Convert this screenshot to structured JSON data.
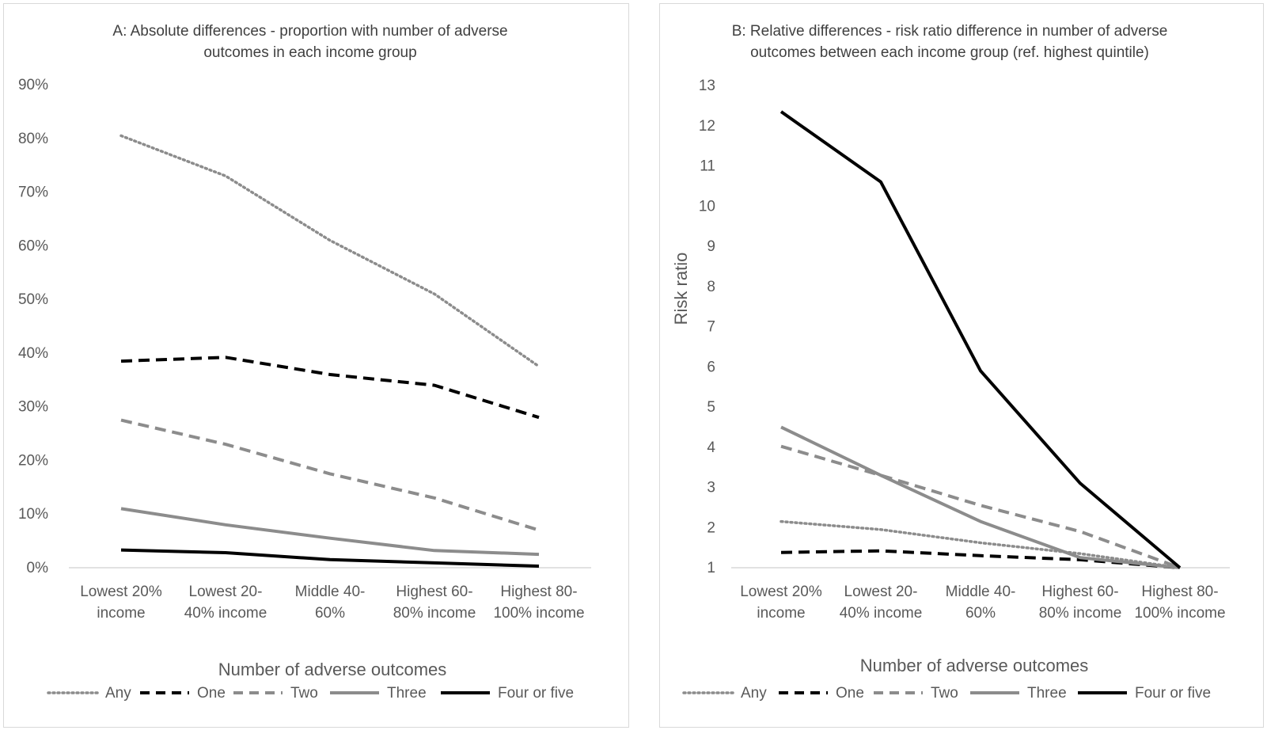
{
  "chart_data": [
    {
      "type": "line",
      "title_lines": [
        "A: Absolute differences - proportion with number of adverse",
        "outcomes in each income group"
      ],
      "xlabel": "Number of adverse outcomes",
      "ylabel": "",
      "categories": [
        [
          "Lowest 20%",
          "income"
        ],
        [
          "Lowest 20-",
          "40% income"
        ],
        [
          "Middle 40-",
          "60%"
        ],
        [
          "Highest 60-",
          "80% income"
        ],
        [
          "Highest 80-",
          "100% income"
        ]
      ],
      "y_ticks": [
        "0%",
        "10%",
        "20%",
        "30%",
        "40%",
        "50%",
        "60%",
        "70%",
        "80%",
        "90%"
      ],
      "ylim": [
        0,
        90
      ],
      "grid": false,
      "legend_position": "bottom",
      "series": [
        {
          "name": "Any",
          "values": [
            80.5,
            73,
            61,
            51,
            37.5
          ],
          "color": "#8c8c8c",
          "style": "dotted"
        },
        {
          "name": "One",
          "values": [
            38.5,
            39.2,
            36,
            34,
            28
          ],
          "color": "#000000",
          "style": "dashed"
        },
        {
          "name": "Two",
          "values": [
            27.5,
            23,
            17.5,
            13,
            7
          ],
          "color": "#8c8c8c",
          "style": "dashed"
        },
        {
          "name": "Three",
          "values": [
            11,
            8,
            5.5,
            3.2,
            2.5
          ],
          "color": "#8c8c8c",
          "style": "solid"
        },
        {
          "name": "Four or five",
          "values": [
            3.3,
            2.8,
            1.5,
            0.9,
            0.3
          ],
          "color": "#000000",
          "style": "solid"
        }
      ]
    },
    {
      "type": "line",
      "title_lines": [
        "B: Relative differences - risk ratio difference in number of adverse",
        "outcomes between each income group (ref. highest quintile)"
      ],
      "xlabel": "Number of adverse outcomes",
      "ylabel": "Risk ratio",
      "categories": [
        [
          "Lowest 20%",
          "income"
        ],
        [
          "Lowest 20-",
          "40% income"
        ],
        [
          "Middle 40-",
          "60%"
        ],
        [
          "Highest 60-",
          "80% income"
        ],
        [
          "Highest 80-",
          "100% income"
        ]
      ],
      "y_ticks": [
        "1",
        "2",
        "3",
        "4",
        "5",
        "6",
        "7",
        "8",
        "9",
        "10",
        "11",
        "12",
        "13"
      ],
      "ylim": [
        1,
        13
      ],
      "grid": false,
      "legend_position": "bottom",
      "series": [
        {
          "name": "Any",
          "values": [
            2.15,
            1.95,
            1.62,
            1.35,
            1
          ],
          "color": "#8c8c8c",
          "style": "dotted"
        },
        {
          "name": "One",
          "values": [
            1.38,
            1.42,
            1.3,
            1.2,
            1
          ],
          "color": "#000000",
          "style": "dashed"
        },
        {
          "name": "Two",
          "values": [
            4.02,
            3.3,
            2.55,
            1.9,
            1
          ],
          "color": "#8c8c8c",
          "style": "dashed"
        },
        {
          "name": "Three",
          "values": [
            4.5,
            3.3,
            2.15,
            1.25,
            1
          ],
          "color": "#8c8c8c",
          "style": "solid"
        },
        {
          "name": "Four or five",
          "values": [
            12.35,
            10.6,
            5.9,
            3.1,
            1
          ],
          "color": "#000000",
          "style": "solid"
        }
      ]
    }
  ]
}
